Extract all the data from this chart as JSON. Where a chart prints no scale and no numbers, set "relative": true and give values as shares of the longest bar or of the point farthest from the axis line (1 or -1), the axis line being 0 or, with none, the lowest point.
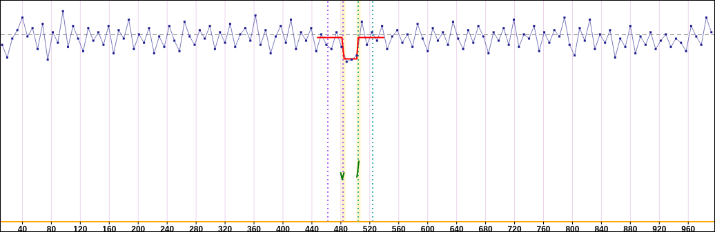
{
  "chart_data": {
    "type": "line",
    "relative": true,
    "xlim": [
      10,
      996
    ],
    "xticks": [
      40,
      80,
      120,
      160,
      200,
      240,
      280,
      320,
      360,
      400,
      440,
      480,
      520,
      560,
      600,
      640,
      680,
      720,
      760,
      800,
      840,
      880,
      920,
      960
    ],
    "tick_labels": "x",
    "grid": "x",
    "marker": "square",
    "x": [
      12,
      19,
      26,
      33,
      40,
      47,
      54,
      61,
      68,
      75,
      82,
      89,
      96,
      103,
      110,
      117,
      124,
      131,
      138,
      145,
      152,
      159,
      166,
      173,
      180,
      187,
      194,
      201,
      208,
      215,
      222,
      229,
      236,
      243,
      250,
      257,
      264,
      271,
      278,
      285,
      292,
      299,
      306,
      313,
      320,
      327,
      334,
      341,
      348,
      355,
      362,
      369,
      376,
      383,
      390,
      397,
      404,
      411,
      418,
      425,
      432,
      439,
      446,
      453,
      460,
      467,
      474,
      481,
      488,
      495,
      502,
      509,
      516,
      523,
      530,
      537,
      544,
      551,
      558,
      565,
      572,
      579,
      586,
      593,
      600,
      607,
      614,
      621,
      628,
      635,
      642,
      649,
      656,
      663,
      670,
      677,
      684,
      691,
      698,
      705,
      712,
      719,
      726,
      733,
      740,
      747,
      754,
      761,
      768,
      775,
      782,
      789,
      796,
      803,
      810,
      817,
      824,
      831,
      838,
      845,
      852,
      859,
      866,
      873,
      880,
      887,
      894,
      901,
      908,
      915,
      922,
      929,
      936,
      943,
      950,
      957,
      964,
      971,
      978,
      985,
      992
    ],
    "series": [
      {
        "color": "#1c1c8e",
        "values": [
          0.84,
          0.78,
          0.87,
          0.91,
          0.97,
          0.88,
          0.92,
          0.82,
          0.94,
          0.77,
          0.9,
          0.85,
          1,
          0.83,
          0.93,
          0.87,
          0.81,
          0.92,
          0.86,
          0.9,
          0.84,
          0.93,
          0.8,
          0.91,
          0.87,
          0.96,
          0.82,
          0.89,
          0.85,
          0.92,
          0.8,
          0.88,
          0.83,
          0.93,
          0.86,
          0.81,
          0.95,
          0.88,
          0.84,
          0.91,
          0.87,
          0.93,
          0.82,
          0.9,
          0.85,
          0.94,
          0.83,
          0.89,
          0.92,
          0.86,
          0.98,
          0.84,
          0.91,
          0.8,
          0.88,
          0.93,
          0.85,
          0.96,
          0.82,
          0.9,
          0.86,
          0.92,
          0.81,
          0.89,
          0.84,
          0.82,
          0.9,
          0.83,
          0.76,
          0.77,
          0.79,
          0.95,
          0.84,
          0.9,
          0.86,
          0.93,
          0.82,
          0.88,
          0.91,
          0.85,
          0.89,
          0.83,
          0.94,
          0.87,
          0.81,
          0.92,
          0.86,
          0.9,
          0.84,
          0.95,
          0.87,
          0.82,
          0.91,
          0.85,
          0.93,
          0.88,
          0.8,
          0.9,
          0.86,
          0.92,
          0.84,
          0.96,
          0.83,
          0.89,
          0.87,
          0.93,
          0.81,
          0.9,
          0.85,
          0.91,
          0.88,
          0.97,
          0.84,
          0.79,
          0.92,
          0.86,
          0.96,
          0.82,
          0.89,
          0.85,
          0.91,
          0.78,
          0.87,
          0.83,
          0.93,
          0.8,
          0.88,
          0.84,
          0.9,
          0.82,
          0.86,
          0.89,
          0.83,
          0.87,
          0.85,
          0.81,
          0.93,
          0.88,
          0.84,
          0.97,
          0.9
        ]
      },
      {
        "color": "#ff0000",
        "marker": "none",
        "x": [
          447,
          481.5,
          484.5,
          502,
          504,
          540
        ],
        "values": [
          0.875,
          0.875,
          0.774,
          0.774,
          0.875,
          0.875
        ]
      },
      {
        "color": "#007700",
        "marker": "none",
        "x": [
          479.5,
          482,
          484.5,
          492,
          502,
          503,
          505
        ],
        "values": [
          0.235,
          0.2,
          0.235,
          null,
          0.21,
          0.23,
          0.29
        ]
      }
    ],
    "ref_lines": [
      {
        "axis": "y",
        "value": 0.888,
        "color": "#808080",
        "line_style": "dashed"
      },
      {
        "axis": "x",
        "value": 462,
        "color": "#9933ff",
        "line_style": "dotted"
      },
      {
        "axis": "x",
        "value": 483,
        "color": "#9933ff",
        "line_style": "dotted"
      },
      {
        "axis": "x",
        "value": 504,
        "color": "#009999",
        "line_style": "dotted"
      },
      {
        "axis": "x",
        "value": 524,
        "color": "#009999",
        "line_style": "dotted"
      }
    ],
    "bands": [
      {
        "axis": "x",
        "from": 480.7,
        "to": 486.4,
        "color": "#fff6c8"
      },
      {
        "axis": "x",
        "from": 501.6,
        "to": 507.3,
        "color": "#fff6c8"
      }
    ]
  }
}
